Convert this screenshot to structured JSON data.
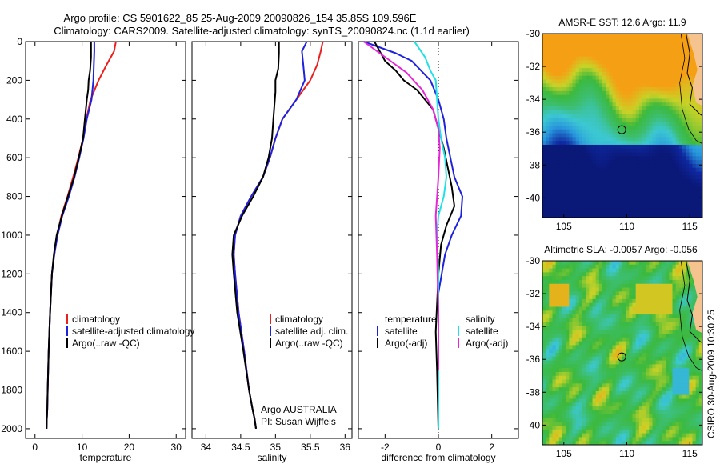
{
  "figure": {
    "title_line1": "Argo profile: CS 5901622_85 25-Aug-2009 20090826_154 35.85S 109.596E",
    "title_line2": "Climatology: CARS2009. Satellite-adjusted climatology: synTS_20090824.nc (1.1d earlier)",
    "credit": "CSIRO 30-Aug-2009 10:30:25"
  },
  "colors": {
    "climatology": "#e8201f",
    "satellite": "#1f22dc",
    "argo": "#000000",
    "sat_salinity": "#22e0e6",
    "argo_salinity_diff": "#e627d8"
  },
  "chart_data": [
    {
      "type": "line",
      "id": "temperature",
      "xlabel": "temperature",
      "ylabel": "",
      "xlim": [
        -2,
        32
      ],
      "ylim": [
        2050,
        0
      ],
      "y_reversed": true,
      "xticks": [
        0,
        10,
        20,
        30
      ],
      "yticks": [
        0,
        200,
        400,
        600,
        800,
        1000,
        1200,
        1400,
        1600,
        1800,
        2000
      ],
      "legend": [
        "climatology",
        "satellite-adjusted climatology",
        "Argo(..raw -QC)"
      ],
      "legend_placement": "lower-right",
      "series": [
        {
          "name": "climatology",
          "color_key": "climatology",
          "x": [
            17.2,
            16.8,
            15.2,
            13.5,
            11.8,
            10.9,
            10.2,
            9.2,
            8.1,
            6.9,
            5.6,
            4.7,
            4.1,
            3.6,
            3.2,
            2.9,
            2.7,
            2.6,
            2.5,
            2.45
          ],
          "y": [
            0,
            50,
            120,
            200,
            300,
            400,
            500,
            600,
            700,
            800,
            900,
            1000,
            1100,
            1200,
            1400,
            1600,
            1800,
            1900,
            1950,
            2000
          ]
        },
        {
          "name": "satellite-adjusted climatology",
          "color_key": "satellite",
          "x": [
            12.6,
            12.6,
            12.5,
            12.4,
            12.0,
            11.0,
            10.3,
            9.4,
            8.4,
            7.2,
            5.8,
            4.8,
            4.1,
            3.6,
            3.2,
            2.9,
            2.7,
            2.6,
            2.5,
            2.45
          ],
          "y": [
            0,
            50,
            120,
            200,
            300,
            400,
            500,
            600,
            700,
            800,
            900,
            1000,
            1100,
            1200,
            1400,
            1600,
            1800,
            1900,
            1950,
            2000
          ]
        },
        {
          "name": "Argo(..raw -QC)",
          "color_key": "argo",
          "x": [
            11.9,
            11.9,
            11.7,
            11.4,
            11.3,
            11.0,
            10.6,
            10.2,
            9.3,
            8.3,
            7.0,
            5.7,
            4.6,
            4.0,
            3.6,
            3.2,
            2.9,
            2.7,
            2.6,
            2.5,
            2.45
          ],
          "y": [
            0,
            80,
            150,
            200,
            250,
            300,
            400,
            500,
            600,
            700,
            800,
            900,
            1000,
            1100,
            1200,
            1400,
            1600,
            1800,
            1900,
            1950,
            2000
          ]
        }
      ]
    },
    {
      "type": "line",
      "id": "salinity",
      "xlabel": "salinity",
      "ylabel": "",
      "xlim": [
        33.8,
        36.1
      ],
      "ylim": [
        2050,
        0
      ],
      "y_reversed": true,
      "xticks": [
        34,
        34.5,
        35,
        35.5,
        36
      ],
      "yticks": [
        0,
        200,
        400,
        600,
        800,
        1000,
        1200,
        1400,
        1600,
        1800,
        2000
      ],
      "legend": [
        "climatology",
        "satellite adj. clim.",
        "Argo(..raw -QC)"
      ],
      "legend_placement": "lower-right",
      "annotation_line1": "Argo AUSTRALIA",
      "annotation_line2": "PI: Susan Wijffels",
      "series": [
        {
          "name": "climatology",
          "color_key": "climatology",
          "x": [
            35.68,
            35.65,
            35.6,
            35.5,
            35.3,
            35.1,
            35.0,
            34.92,
            34.82,
            34.65,
            34.5,
            34.42,
            34.4,
            34.42,
            34.47,
            34.55,
            34.62,
            34.67,
            34.7,
            34.72
          ],
          "y": [
            0,
            50,
            120,
            200,
            300,
            400,
            500,
            600,
            700,
            800,
            900,
            1000,
            1100,
            1200,
            1400,
            1600,
            1800,
            1900,
            1950,
            2000
          ]
        },
        {
          "name": "satellite adj. clim.",
          "color_key": "satellite",
          "x": [
            35.45,
            35.38,
            35.4,
            35.42,
            35.3,
            35.1,
            35.0,
            34.92,
            34.82,
            34.65,
            34.5,
            34.42,
            34.4,
            34.42,
            34.47,
            34.55,
            34.62,
            34.67,
            34.7,
            34.72
          ],
          "y": [
            0,
            50,
            120,
            200,
            300,
            400,
            500,
            600,
            700,
            800,
            900,
            1000,
            1100,
            1200,
            1400,
            1600,
            1800,
            1900,
            1950,
            2000
          ]
        },
        {
          "name": "Argo(..raw -QC)",
          "color_key": "argo",
          "x": [
            35.05,
            35.05,
            35.04,
            35.0,
            35.0,
            34.97,
            34.95,
            34.9,
            34.82,
            34.68,
            34.52,
            34.4,
            34.38,
            34.4,
            34.45,
            34.54,
            34.62,
            34.67,
            34.7,
            34.72
          ],
          "y": [
            0,
            60,
            140,
            200,
            260,
            400,
            500,
            600,
            700,
            800,
            900,
            1000,
            1100,
            1200,
            1400,
            1600,
            1800,
            1900,
            1950,
            2000
          ]
        }
      ]
    },
    {
      "type": "line",
      "id": "difference",
      "xlabel": "difference from climatology",
      "ylabel": "",
      "xlim": [
        -3,
        3
      ],
      "ylim": [
        2050,
        0
      ],
      "y_reversed": true,
      "xticks": [
        -2,
        0,
        2
      ],
      "yticks": [
        0,
        200,
        400,
        600,
        800,
        1000,
        1200,
        1400,
        1600,
        1800,
        2000
      ],
      "zero_line": "dotted",
      "legend_heading_left": "temperature",
      "legend_heading_right": "salinity",
      "legend_left": [
        "satellite",
        "Argo(-adj)"
      ],
      "legend_right": [
        "satellite",
        "Argo(-adj)"
      ],
      "legend_placement": "lower-center",
      "series": [
        {
          "name": "satellite",
          "group": "temperature",
          "color_key": "satellite",
          "x": [
            -2.8,
            -1.6,
            -1.0,
            -0.3,
            0.0,
            0.2,
            0.3,
            0.45,
            0.6,
            0.9,
            0.85,
            0.5,
            0.25,
            0.0,
            0.0,
            0.0
          ],
          "y": [
            0,
            60,
            100,
            200,
            300,
            400,
            500,
            600,
            700,
            800,
            900,
            1000,
            1100,
            1300,
            1600,
            2000
          ]
        },
        {
          "name": "Argo(-adj)",
          "group": "temperature",
          "color_key": "argo",
          "x": [
            -2.4,
            -2.0,
            -1.6,
            -1.3,
            -0.8,
            -0.2,
            0.0,
            0.2,
            0.35,
            0.5,
            0.6,
            0.3,
            0.1,
            0.0,
            -0.1,
            -0.05,
            0.0
          ],
          "y": [
            0,
            100,
            150,
            200,
            250,
            350,
            450,
            550,
            650,
            750,
            850,
            950,
            1050,
            1200,
            1500,
            1700,
            2000
          ]
        },
        {
          "name": "satellite",
          "group": "salinity",
          "color_key": "sat_salinity",
          "x": [
            -0.9,
            -0.5,
            -0.3,
            -0.1,
            -0.05,
            0.0,
            0.1,
            0.25,
            0.3,
            0.2,
            0.0,
            -0.05,
            0.0,
            0.0,
            0.0
          ],
          "y": [
            0,
            80,
            150,
            200,
            300,
            400,
            500,
            600,
            700,
            800,
            900,
            1000,
            1200,
            1600,
            2000
          ]
        },
        {
          "name": "Argo(-adj)",
          "group": "salinity",
          "color_key": "argo_salinity_diff",
          "x": [
            -2.8,
            -2.2,
            -1.6,
            -1.2,
            -0.6,
            -0.2,
            0.0,
            0.05,
            0.0,
            -0.1,
            -0.05,
            0.0,
            0.0
          ],
          "y": [
            0,
            60,
            120,
            160,
            250,
            350,
            450,
            550,
            700,
            900,
            1100,
            1400,
            1700
          ]
        }
      ]
    },
    {
      "type": "heatmap",
      "id": "sst_map",
      "title": "AMSR-E SST: 12.6 Argo: 11.9",
      "xlim": [
        103.3,
        116.0
      ],
      "ylim": [
        -41.2,
        -30.0
      ],
      "xticks": [
        105,
        110,
        115
      ],
      "yticks": [
        -30,
        -32,
        -34,
        -36,
        -38,
        -40
      ],
      "argo_position": {
        "lon": 109.6,
        "lat": -35.85
      }
    },
    {
      "type": "heatmap",
      "id": "sla_map",
      "title": "Altimetric SLA: -0.0057 Argo: -0.056",
      "xlim": [
        103.3,
        116.0
      ],
      "ylim": [
        -41.2,
        -30.0
      ],
      "xticks": [
        105,
        110,
        115
      ],
      "yticks": [
        -30,
        -32,
        -34,
        -36,
        -38,
        -40
      ],
      "argo_position": {
        "lon": 109.6,
        "lat": -35.85
      }
    }
  ]
}
